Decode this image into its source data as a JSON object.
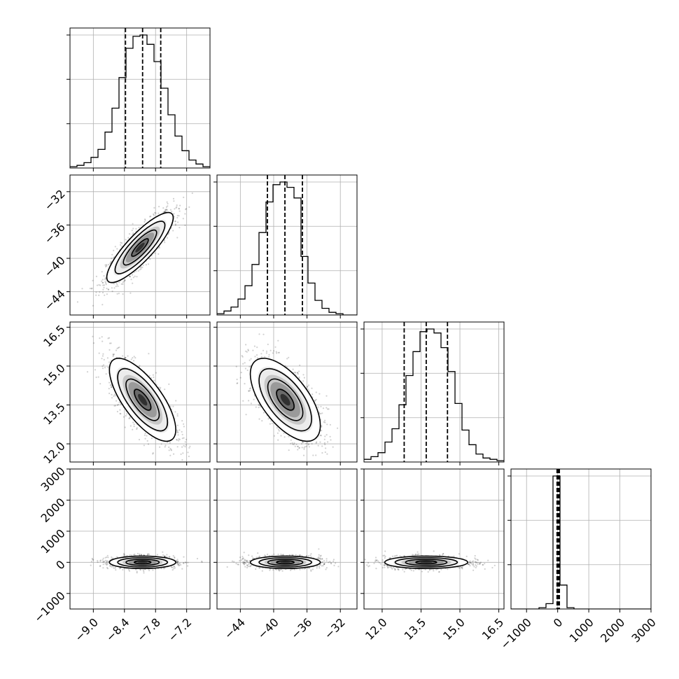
{
  "chart_data": {
    "type": "corner",
    "grid": true,
    "params": [
      {
        "range": [
          -9.45,
          -6.75
        ],
        "ticks": [
          -9.0,
          -8.4,
          -7.8,
          -7.2
        ],
        "tick_labels": [
          "−9.0",
          "−8.4",
          "−7.8",
          "−7.2"
        ],
        "quantiles": [
          -8.38,
          -8.05,
          -7.7
        ],
        "hist": {
          "edges_start": -9.45,
          "bin_width": 0.135,
          "counts": [
            1,
            2,
            4,
            8,
            14,
            27,
            45,
            68,
            90,
            99,
            100,
            93,
            80,
            60,
            40,
            24,
            13,
            6,
            3,
            1
          ]
        }
      },
      {
        "range": [
          -46.8,
          -30.0
        ],
        "ticks": [
          -44,
          -40,
          -36,
          -32
        ],
        "tick_labels": [
          "−44",
          "−40",
          "−36",
          "−32"
        ],
        "quantiles": [
          -40.75,
          -38.65,
          -36.55
        ],
        "hist": {
          "edges_start": -46.8,
          "bin_width": 0.84,
          "counts": [
            1,
            3,
            6,
            12,
            22,
            38,
            62,
            85,
            98,
            100,
            96,
            88,
            44,
            24,
            11,
            5,
            2,
            1,
            0,
            0
          ]
        }
      },
      {
        "range": [
          11.3,
          16.7
        ],
        "ticks": [
          12.0,
          13.5,
          15.0,
          16.5
        ],
        "tick_labels": [
          "12.0",
          "13.5",
          "15.0",
          "16.5"
        ],
        "quantiles": [
          12.85,
          13.7,
          14.52
        ],
        "hist": {
          "edges_start": 11.3,
          "bin_width": 0.27,
          "counts": [
            2,
            4,
            7,
            15,
            25,
            43,
            65,
            83,
            98,
            100,
            97,
            86,
            68,
            44,
            24,
            13,
            6,
            3,
            2,
            1
          ]
        }
      },
      {
        "range": [
          -1500,
          3000
        ],
        "ticks": [
          -1000,
          0,
          1000,
          2000,
          3000
        ],
        "tick_labels": [
          "−1000",
          "0",
          "1000",
          "2000",
          "3000"
        ],
        "quantiles": [
          -20,
          20,
          55
        ],
        "hist": {
          "edges_start": -1500,
          "bin_width": 225,
          "counts": [
            0,
            0,
            0,
            0,
            1,
            4,
            100,
            18,
            1,
            0,
            0,
            0,
            0,
            0,
            0,
            0,
            0,
            0,
            0,
            0
          ]
        }
      }
    ],
    "panels_2d": [
      {
        "row": 1,
        "col": 0,
        "center": [
          -8.1,
          -38.7
        ],
        "sigma": [
          0.32,
          2.1
        ],
        "rho": 0.85,
        "samples": 1400
      },
      {
        "row": 2,
        "col": 0,
        "center": [
          -8.05,
          13.7
        ],
        "sigma": [
          0.32,
          0.8
        ],
        "rho": -0.72,
        "samples": 1400
      },
      {
        "row": 2,
        "col": 1,
        "center": [
          -38.6,
          13.7
        ],
        "sigma": [
          2.1,
          0.8
        ],
        "rho": -0.62,
        "samples": 1400
      },
      {
        "row": 3,
        "col": 0,
        "center": [
          -8.05,
          0
        ],
        "sigma": [
          0.32,
          100
        ],
        "rho": 0.0,
        "samples": 1400
      },
      {
        "row": 3,
        "col": 1,
        "center": [
          -38.6,
          0
        ],
        "sigma": [
          2.1,
          100
        ],
        "rho": 0.0,
        "samples": 1400
      },
      {
        "row": 3,
        "col": 2,
        "center": [
          13.7,
          0
        ],
        "sigma": [
          0.8,
          100
        ],
        "rho": 0.0,
        "samples": 1400
      }
    ],
    "contour_levels_sigma": [
      0.5,
      1.0,
      1.5,
      2.0
    ],
    "colors": {
      "line": "#000000",
      "points": "#000000",
      "grid": "#b0b0b0",
      "density_dark": "#000000"
    }
  }
}
